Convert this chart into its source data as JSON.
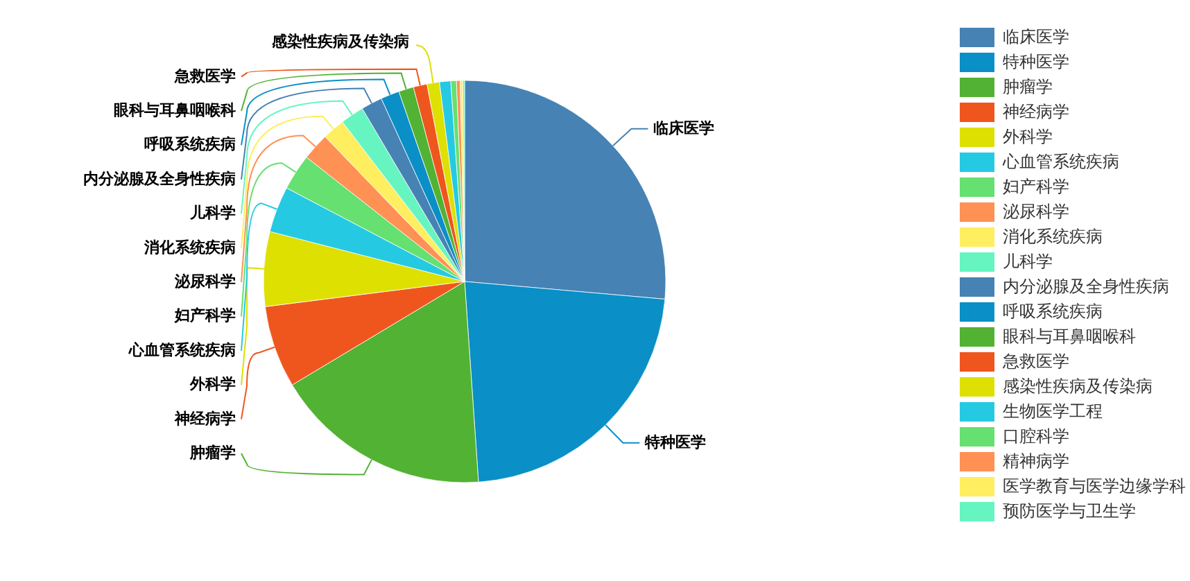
{
  "chart_data": {
    "type": "pie",
    "categories": [
      "临床医学",
      "特种医学",
      "肿瘤学",
      "神经病学",
      "外科学",
      "心血管系统疾病",
      "妇产科学",
      "泌尿科学",
      "消化系统疾病",
      "儿科学",
      "内分泌腺及全身性疾病",
      "呼吸系统疾病",
      "眼科与耳鼻咽喉科",
      "急救医学",
      "感染性疾病及传染病",
      "生物医学工程",
      "口腔科学",
      "精神病学",
      "医学教育与医学边缘学科",
      "预防医学与卫生学"
    ],
    "values": [
      26.4,
      22.5,
      17.5,
      6.6,
      6,
      3.7,
      2.9,
      2.2,
      1.8,
      1.9,
      1.7,
      1.5,
      1.2,
      1.1,
      1.0,
      0.9,
      0.45,
      0.3,
      0.2,
      0.15
    ],
    "colors": [
      "#4682b4",
      "#0a8fc6",
      "#52b233",
      "#ef561d",
      "#dde000",
      "#26c9e2",
      "#66e070",
      "#ff9155",
      "#ffee60",
      "#66f5c0",
      "#4682b4",
      "#0a8fc6",
      "#52b233",
      "#ef561d",
      "#dde000",
      "#26c9e2",
      "#66e070",
      "#ff9155",
      "#ffee60",
      "#66f5c0"
    ],
    "legend": "right"
  }
}
